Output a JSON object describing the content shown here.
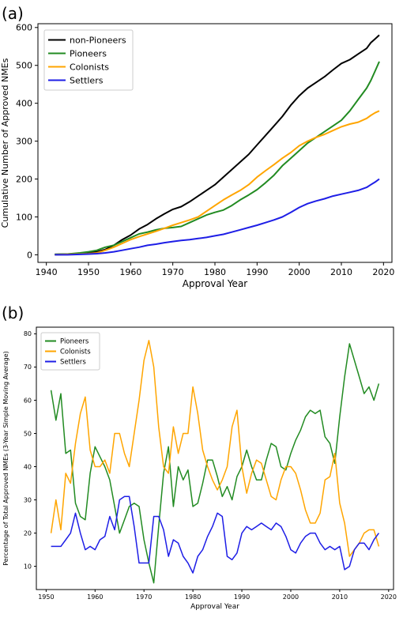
{
  "panel_a_letter": "(a)",
  "panel_b_letter": "(b)",
  "chart_data": [
    {
      "type": "line",
      "panel": "(a)",
      "title": "",
      "xlabel": "Approval Year",
      "ylabel": "Cumulative Number of Approved NMEs",
      "xlim": [
        1938,
        2022
      ],
      "ylim": [
        -20,
        610
      ],
      "xticks": [
        1940,
        1950,
        1960,
        1970,
        1980,
        1990,
        2000,
        2010,
        2020
      ],
      "yticks": [
        0,
        100,
        200,
        300,
        400,
        500,
        600
      ],
      "legend_position": "top-left",
      "grid": false,
      "x": [
        1942,
        1945,
        1948,
        1950,
        1952,
        1954,
        1956,
        1958,
        1960,
        1962,
        1964,
        1966,
        1968,
        1970,
        1972,
        1974,
        1976,
        1978,
        1980,
        1982,
        1984,
        1986,
        1988,
        1990,
        1992,
        1994,
        1996,
        1998,
        2000,
        2002,
        2004,
        2006,
        2008,
        2010,
        2012,
        2014,
        2016,
        2017,
        2018,
        2019
      ],
      "series": [
        {
          "name": "non-Pioneers",
          "color": "#000000",
          "values": [
            1,
            2,
            3,
            5,
            8,
            14,
            25,
            40,
            52,
            68,
            80,
            95,
            108,
            120,
            127,
            140,
            155,
            170,
            185,
            205,
            225,
            245,
            265,
            290,
            315,
            340,
            365,
            395,
            420,
            440,
            455,
            470,
            488,
            505,
            515,
            530,
            545,
            560,
            570,
            580
          ]
        },
        {
          "name": "Pioneers",
          "color": "#228B22",
          "values": [
            1,
            2,
            5,
            8,
            12,
            20,
            25,
            35,
            45,
            55,
            60,
            66,
            70,
            72,
            75,
            85,
            95,
            105,
            112,
            118,
            130,
            145,
            158,
            172,
            190,
            210,
            235,
            255,
            275,
            295,
            310,
            325,
            340,
            355,
            380,
            410,
            440,
            460,
            485,
            510
          ]
        },
        {
          "name": "Colonists",
          "color": "#FFA500",
          "values": [
            0,
            1,
            2,
            3,
            5,
            12,
            20,
            30,
            40,
            48,
            55,
            62,
            70,
            78,
            85,
            92,
            100,
            115,
            130,
            145,
            158,
            170,
            185,
            205,
            222,
            238,
            255,
            270,
            288,
            300,
            310,
            318,
            328,
            338,
            345,
            350,
            360,
            368,
            375,
            380
          ]
        },
        {
          "name": "Settlers",
          "color": "#1E1EE6",
          "values": [
            0,
            0,
            1,
            2,
            3,
            5,
            8,
            12,
            16,
            20,
            25,
            28,
            32,
            35,
            38,
            40,
            43,
            46,
            50,
            54,
            60,
            66,
            72,
            78,
            85,
            92,
            100,
            112,
            125,
            135,
            142,
            148,
            155,
            160,
            165,
            170,
            178,
            185,
            192,
            200
          ]
        }
      ]
    },
    {
      "type": "line",
      "panel": "(b)",
      "title": "",
      "xlabel": "Approval Year",
      "ylabel": "Percentage of Total Approved NMEs (3-Year Simple Moving Average)",
      "xlim": [
        1948,
        2021
      ],
      "ylim": [
        3,
        82
      ],
      "xticks": [
        1950,
        1960,
        1970,
        1980,
        1990,
        2000,
        2010,
        2020
      ],
      "yticks": [
        10,
        20,
        30,
        40,
        50,
        60,
        70,
        80
      ],
      "legend_position": "top-left",
      "grid": false,
      "x": [
        1951,
        1952,
        1953,
        1954,
        1955,
        1956,
        1957,
        1958,
        1959,
        1960,
        1961,
        1962,
        1963,
        1964,
        1965,
        1966,
        1967,
        1968,
        1969,
        1970,
        1971,
        1972,
        1973,
        1974,
        1975,
        1976,
        1977,
        1978,
        1979,
        1980,
        1981,
        1982,
        1983,
        1984,
        1985,
        1986,
        1987,
        1988,
        1989,
        1990,
        1991,
        1992,
        1993,
        1994,
        1995,
        1996,
        1997,
        1998,
        1999,
        2000,
        2001,
        2002,
        2003,
        2004,
        2005,
        2006,
        2007,
        2008,
        2009,
        2010,
        2011,
        2012,
        2013,
        2014,
        2015,
        2016,
        2017,
        2018
      ],
      "series": [
        {
          "name": "Pioneers",
          "color": "#228B22",
          "values": [
            63,
            54,
            62,
            44,
            45,
            29,
            25,
            24,
            38,
            46,
            43,
            40,
            36,
            28,
            20,
            24,
            28,
            29,
            28,
            18,
            11,
            5,
            22,
            38,
            46,
            28,
            40,
            36,
            39,
            28,
            29,
            35,
            42,
            42,
            37,
            31,
            34,
            30,
            37,
            40,
            45,
            40,
            36,
            36,
            42,
            47,
            46,
            40,
            39,
            44,
            48,
            51,
            55,
            57,
            56,
            57,
            49,
            47,
            41,
            55,
            67,
            77,
            72,
            67,
            62,
            64,
            60,
            65
          ]
        },
        {
          "name": "Colonists",
          "color": "#FFA500",
          "values": [
            20,
            30,
            21,
            38,
            35,
            47,
            56,
            61,
            45,
            40,
            40,
            42,
            38,
            50,
            50,
            44,
            40,
            50,
            60,
            72,
            78,
            70,
            52,
            40,
            38,
            52,
            44,
            50,
            50,
            64,
            56,
            45,
            40,
            36,
            33,
            36,
            40,
            52,
            57,
            40,
            32,
            38,
            42,
            41,
            36,
            31,
            30,
            36,
            40,
            40,
            38,
            33,
            27,
            23,
            23,
            26,
            36,
            37,
            44,
            29,
            23,
            13,
            15,
            17,
            20,
            21,
            21,
            16
          ]
        },
        {
          "name": "Settlers",
          "color": "#1E1EE6",
          "values": [
            16,
            16,
            16,
            18,
            20,
            26,
            20,
            15,
            16,
            15,
            18,
            19,
            25,
            21,
            30,
            31,
            31,
            22,
            11,
            11,
            11,
            25,
            25,
            21,
            13,
            18,
            17,
            13,
            11,
            8,
            13,
            15,
            19,
            22,
            26,
            25,
            13,
            12,
            14,
            20,
            22,
            21,
            22,
            23,
            22,
            21,
            23,
            22,
            19,
            15,
            14,
            17,
            19,
            20,
            20,
            17,
            15,
            16,
            15,
            16,
            9,
            10,
            15,
            17,
            17,
            15,
            18,
            20
          ]
        }
      ]
    }
  ]
}
